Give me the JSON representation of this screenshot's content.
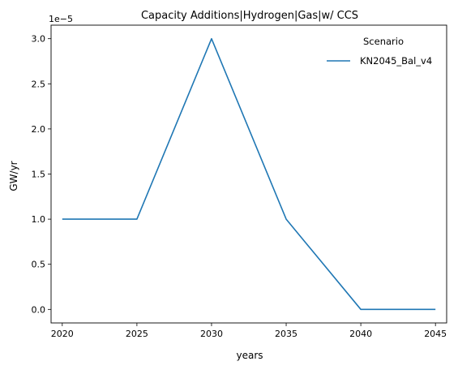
{
  "chart_data": {
    "type": "line",
    "title": "Capacity Additions|Hydrogen|Gas|w/ CCS",
    "xlabel": "years",
    "ylabel": "GW/yr",
    "y_offset_label": "1e−5",
    "x": [
      2020,
      2025,
      2030,
      2035,
      2040,
      2045
    ],
    "x_ticks": [
      "2020",
      "2025",
      "2030",
      "2035",
      "2040",
      "2045"
    ],
    "y_ticks": [
      "0.0",
      "0.5",
      "1.0",
      "1.5",
      "2.0",
      "2.5",
      "3.0"
    ],
    "xlim": [
      2019.25,
      2045.75
    ],
    "ylim": [
      -0.15,
      3.15
    ],
    "grid": false,
    "legend": {
      "title": "Scenario",
      "placement": "top-right"
    },
    "series": [
      {
        "name": "KN2045_Bal_v4",
        "color": "#1f77b4",
        "values": [
          1.0,
          1.0,
          3.0,
          1.0,
          0.0,
          0.0
        ]
      }
    ]
  }
}
